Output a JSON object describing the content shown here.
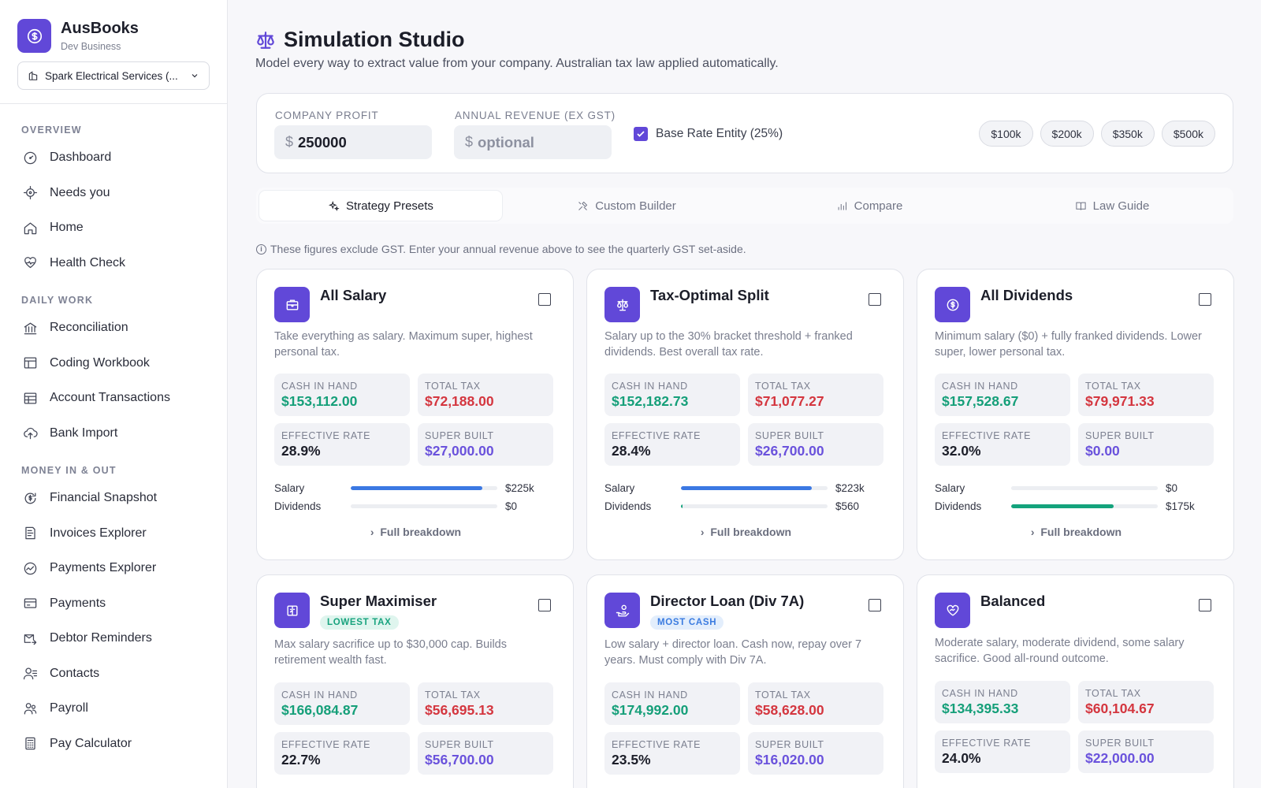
{
  "brand": {
    "name": "AusBooks",
    "subtitle": "Dev Business",
    "org": "Spark Electrical Services (..."
  },
  "nav": {
    "overview": "OVERVIEW",
    "daily_work": "DAILY WORK",
    "money": "MONEY IN & OUT",
    "items": {
      "dashboard": "Dashboard",
      "needs_you": "Needs you",
      "home": "Home",
      "health_check": "Health Check",
      "reconciliation": "Reconciliation",
      "coding_workbook": "Coding Workbook",
      "account_transactions": "Account Transactions",
      "bank_import": "Bank Import",
      "financial_snapshot": "Financial Snapshot",
      "invoices_explorer": "Invoices Explorer",
      "payments_explorer": "Payments Explorer",
      "payments": "Payments",
      "debtor_reminders": "Debtor Reminders",
      "contacts": "Contacts",
      "payroll": "Payroll",
      "pay_calculator": "Pay Calculator"
    }
  },
  "page": {
    "title": "Simulation Studio",
    "subtitle": "Model every way to extract value from your company. Australian tax law applied automatically."
  },
  "inputs": {
    "profit_label": "COMPANY PROFIT",
    "profit_value": "250000",
    "revenue_label": "ANNUAL REVENUE (EX GST)",
    "revenue_placeholder": "optional",
    "currency": "$",
    "bre_label": "Base Rate Entity (25%)",
    "presets": [
      "$100k",
      "$200k",
      "$350k",
      "$500k"
    ]
  },
  "tabs": [
    "Strategy Presets",
    "Custom Builder",
    "Compare",
    "Law Guide"
  ],
  "gst_note": "These figures exclude GST. Enter your annual revenue above to see the quarterly GST set-aside.",
  "labels": {
    "cash": "CASH IN HAND",
    "tax": "TOTAL TAX",
    "rate": "EFFECTIVE RATE",
    "super": "SUPER BUILT",
    "salary": "Salary",
    "dividends": "Dividends",
    "full": "Full breakdown"
  },
  "cards": [
    {
      "title": "All Salary",
      "desc": "Take everything as salary. Maximum super, highest personal tax.",
      "cash": "$153,112.00",
      "tax": "$72,188.00",
      "rate": "28.9%",
      "super": "$27,000.00",
      "salary_val": "$225k",
      "salary_pct": 0.9,
      "div_val": "$0",
      "div_pct": 0
    },
    {
      "title": "Tax-Optimal Split",
      "desc": "Salary up to the 30% bracket threshold + franked dividends. Best overall tax rate.",
      "cash": "$152,182.73",
      "tax": "$71,077.27",
      "rate": "28.4%",
      "super": "$26,700.00",
      "salary_val": "$223k",
      "salary_pct": 0.89,
      "div_val": "$560",
      "div_pct": 0.01
    },
    {
      "title": "All Dividends",
      "desc": "Minimum salary ($0) + fully franked dividends. Lower super, lower personal tax.",
      "cash": "$157,528.67",
      "tax": "$79,971.33",
      "rate": "32.0%",
      "super": "$0.00",
      "salary_val": "$0",
      "salary_pct": 0,
      "div_val": "$175k",
      "div_pct": 0.7
    },
    {
      "title": "Super Maximiser",
      "badge": "LOWEST TAX",
      "desc": "Max salary sacrifice up to $30,000 cap. Builds retirement wealth fast.",
      "cash": "$166,084.87",
      "tax": "$56,695.13",
      "rate": "22.7%",
      "super": "$56,700.00"
    },
    {
      "title": "Director Loan (Div 7A)",
      "badge": "MOST CASH",
      "desc": "Low salary + director loan. Cash now, repay over 7 years. Must comply with Div 7A.",
      "cash": "$174,992.00",
      "tax": "$58,628.00",
      "rate": "23.5%",
      "super": "$16,020.00"
    },
    {
      "title": "Balanced",
      "desc": "Moderate salary, moderate dividend, some salary sacrifice. Good all-round outcome.",
      "cash": "$134,395.33",
      "tax": "$60,104.67",
      "rate": "24.0%",
      "super": "$22,000.00"
    }
  ]
}
